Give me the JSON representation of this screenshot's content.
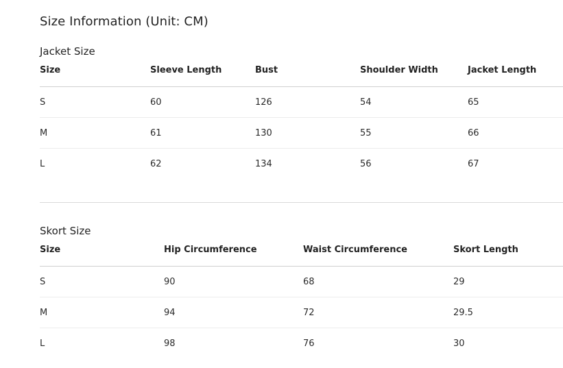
{
  "title": "Size Information (Unit: CM)",
  "jacket": {
    "heading": "Jacket Size",
    "columns": [
      "Size",
      "Sleeve Length",
      "Bust",
      "Shoulder Width",
      "Jacket Length"
    ],
    "rows": [
      [
        "S",
        "60",
        "126",
        "54",
        "65"
      ],
      [
        "M",
        "61",
        "130",
        "55",
        "66"
      ],
      [
        "L",
        "62",
        "134",
        "56",
        "67"
      ]
    ]
  },
  "skort": {
    "heading": "Skort Size",
    "columns": [
      "Size",
      "Hip Circumference",
      "Waist Circumference",
      "Skort Length"
    ],
    "rows": [
      [
        "S",
        "90",
        "68",
        "29"
      ],
      [
        "M",
        "94",
        "72",
        "29.5"
      ],
      [
        "L",
        "98",
        "76",
        "30"
      ]
    ]
  }
}
